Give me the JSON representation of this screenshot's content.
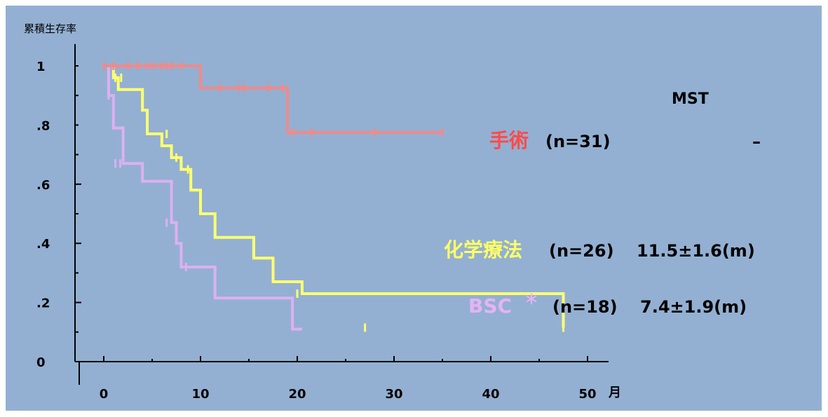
{
  "chart_data": {
    "type": "line",
    "title": "",
    "ylabel": "累積生存率",
    "xlabel": "月",
    "xlim": [
      -3,
      50
    ],
    "ylim": [
      0,
      1.05
    ],
    "xticks": [
      0,
      10,
      20,
      30,
      40,
      50
    ],
    "xtick_labels": [
      "0",
      "10",
      "20",
      "30",
      "40",
      "50"
    ],
    "yticks": [
      0,
      0.2,
      0.4,
      0.6,
      0.8,
      1
    ],
    "ytick_labels": [
      "0",
      ".2",
      ".4",
      ".6",
      ".8",
      "1"
    ],
    "grid": false,
    "legend_header": "MST",
    "series": [
      {
        "name": "手術",
        "n_label": "(n=31)",
        "mst": "–",
        "color": "#f08a8a",
        "label_color": "#ff4b4b",
        "x": [
          0,
          10,
          19,
          35
        ],
        "y": [
          1.0,
          0.925,
          0.775,
          0.775
        ],
        "censor_x": [
          0,
          1,
          2.5,
          3.5,
          4.5,
          5.2,
          6,
          6.5,
          7,
          8,
          12,
          14,
          14.5,
          17,
          18.5,
          19.5,
          21.5,
          28,
          35
        ],
        "censor_y": [
          1.0,
          1.0,
          1.0,
          1.0,
          1.0,
          1.0,
          1.0,
          1.0,
          1.0,
          1.0,
          0.925,
          0.925,
          0.925,
          0.925,
          0.925,
          0.775,
          0.775,
          0.775,
          0.775
        ]
      },
      {
        "name": "化学療法",
        "n_label": "(n=26)",
        "mst": "11.5±1.6(m)",
        "color": "#ffff70",
        "label_color": "#ffff66",
        "x": [
          0,
          1,
          1.5,
          4,
          4.5,
          6,
          7,
          8,
          9,
          10,
          11.5,
          15.5,
          17.5,
          20.5,
          47.5
        ],
        "y": [
          1.0,
          0.96,
          0.92,
          0.85,
          0.77,
          0.73,
          0.69,
          0.65,
          0.58,
          0.5,
          0.42,
          0.35,
          0.27,
          0.23,
          0.115
        ],
        "censor_x": [
          1.2,
          1.8,
          6.5,
          7.5,
          8.7,
          20,
          27,
          47.5
        ],
        "censor_y": [
          0.96,
          0.96,
          0.77,
          0.69,
          0.65,
          0.23,
          0.115,
          0.115
        ],
        "mark_label": ""
      },
      {
        "name": "BSC",
        "name_suffix": "＊",
        "n_label": "(n=18)",
        "mst": "7.4±1.9(m)",
        "color": "#ddb0f0",
        "label_color": "#e7b3f3",
        "x": [
          0,
          0.5,
          1,
          2,
          4,
          7,
          7.5,
          8,
          11.5,
          19.5,
          20.5
        ],
        "y": [
          1.0,
          0.9,
          0.79,
          0.67,
          0.61,
          0.47,
          0.4,
          0.32,
          0.215,
          0.11,
          0.11
        ],
        "censor_x": [
          0,
          0.5,
          1.2,
          1.7,
          6.5,
          8.5
        ],
        "censor_y": [
          1.0,
          0.9,
          0.67,
          0.67,
          0.47,
          0.32
        ]
      }
    ]
  }
}
